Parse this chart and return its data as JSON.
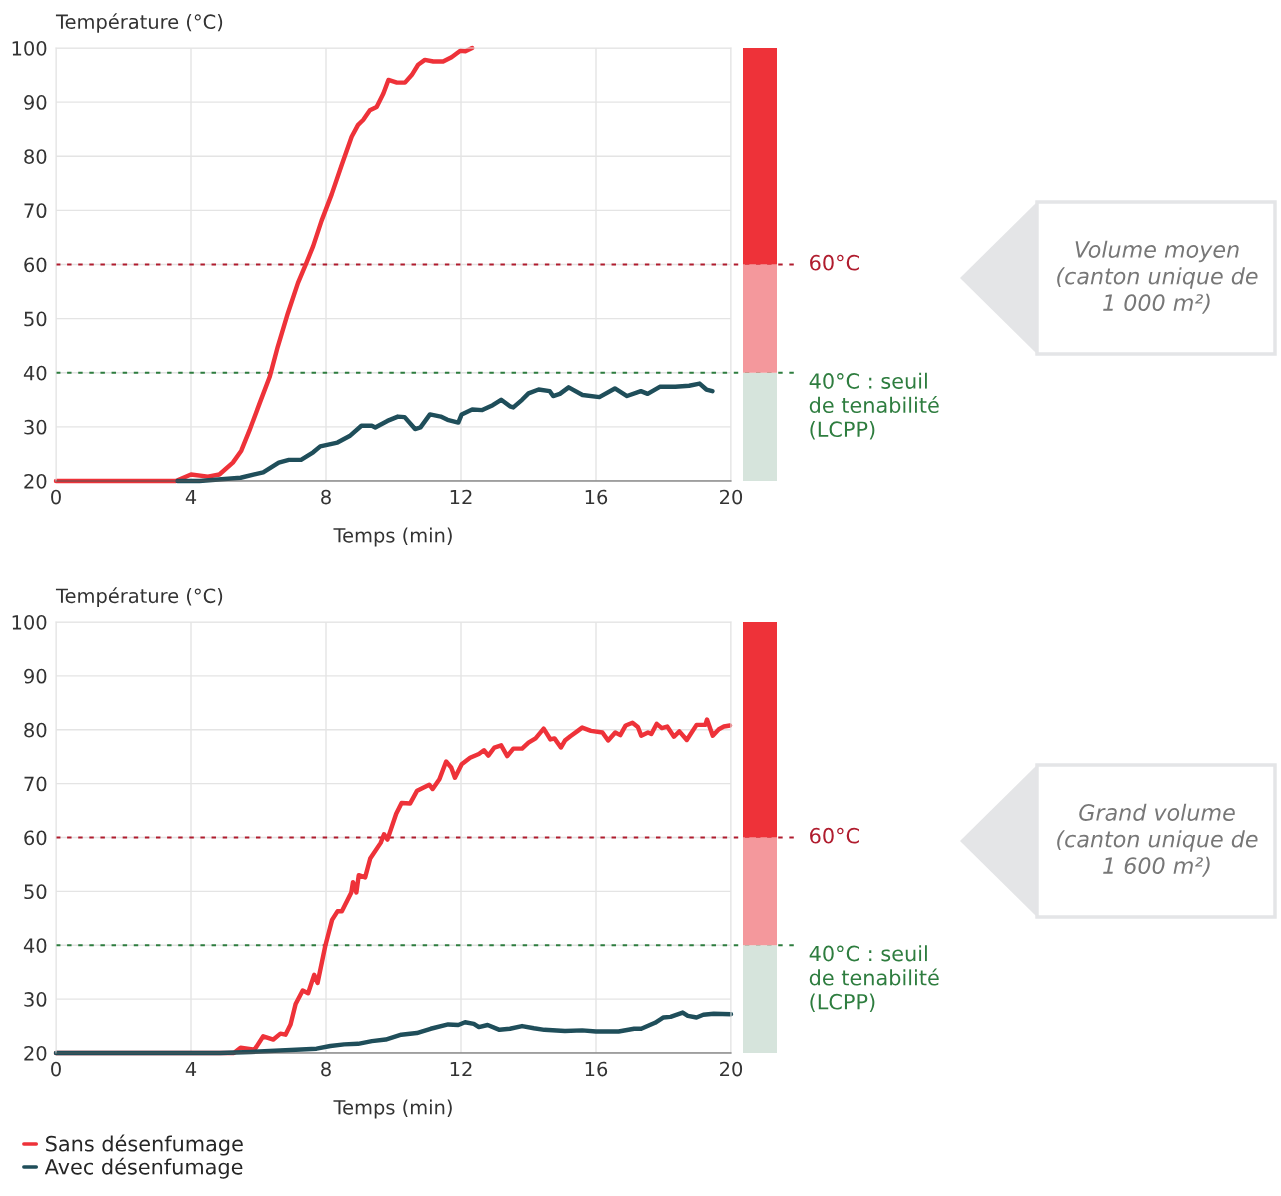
{
  "chart_data": [
    {
      "type": "line",
      "ylabel": "Température (°C)",
      "xlabel": "Temps (min)",
      "xlim": [
        0,
        20
      ],
      "xticks": [
        0,
        4,
        8,
        12,
        16,
        20
      ],
      "ylim": [
        20,
        100
      ],
      "yticks": [
        20,
        30,
        40,
        50,
        60,
        70,
        80,
        90,
        100
      ],
      "grid": true,
      "legend": false,
      "marker": "none",
      "line_style": "solid",
      "series": [
        {
          "color": "#ee3239",
          "x": [
            0,
            3.55,
            4.0,
            4.5,
            4.84,
            5.24,
            5.49,
            5.73,
            6.03,
            6.33,
            6.57,
            6.87,
            7.17,
            7.42,
            7.62,
            7.87,
            8.17,
            8.46,
            8.76,
            8.95,
            9.1,
            9.3,
            9.5,
            9.7,
            9.85,
            10.1,
            10.34,
            10.54,
            10.73,
            10.93,
            11.18,
            11.47,
            11.72,
            11.98,
            12.13,
            12.33
          ],
          "values": [
            20,
            20,
            21.2,
            20.8,
            21.2,
            23.4,
            25.6,
            29.3,
            34.3,
            39.2,
            44.8,
            51.0,
            56.6,
            60.3,
            63.4,
            68.1,
            73.0,
            78.3,
            83.6,
            85.8,
            86.7,
            88.5,
            89.1,
            91.6,
            94.1,
            93.6,
            93.6,
            95.0,
            96.9,
            97.8,
            97.5,
            97.5,
            98.3,
            99.5,
            99.4,
            100
          ]
        },
        {
          "color": "#1f4e5a",
          "x": [
            3.6,
            4.25,
            5.47,
            6.14,
            6.6,
            6.9,
            7.26,
            7.62,
            7.83,
            8.34,
            8.7,
            9.05,
            9.36,
            9.46,
            9.82,
            10.13,
            10.33,
            10.64,
            10.8,
            11.08,
            11.4,
            11.6,
            11.92,
            12.02,
            12.33,
            12.63,
            12.94,
            13.19,
            13.45,
            13.55,
            13.81,
            14.0,
            14.3,
            14.63,
            14.73,
            14.93,
            15.19,
            15.6,
            16.1,
            16.56,
            16.92,
            17.33,
            17.53,
            17.89,
            18.35,
            18.76,
            19.07,
            19.27,
            19.45
          ],
          "values": [
            20,
            20.0,
            20.6,
            21.6,
            23.4,
            23.9,
            23.9,
            25.3,
            26.4,
            27.1,
            28.3,
            30.2,
            30.2,
            29.9,
            31.1,
            31.9,
            31.8,
            29.6,
            29.9,
            32.3,
            31.9,
            31.3,
            30.8,
            32.3,
            33.2,
            33.1,
            34.0,
            35.0,
            33.8,
            33.6,
            35.0,
            36.2,
            36.9,
            36.6,
            35.7,
            36.1,
            37.3,
            35.9,
            35.5,
            37.1,
            35.7,
            36.6,
            36.1,
            37.4,
            37.4,
            37.6,
            38.0,
            36.9,
            36.6
          ]
        }
      ],
      "ref_lines": [
        {
          "axis": "y",
          "value": 60,
          "label": "60°C",
          "color": "#b01c2e",
          "line_style": "dotted"
        },
        {
          "axis": "y",
          "value": 40,
          "label": "40°C : seuil\nde tenabilité\n(LCPP)",
          "color": "#2e7d3f",
          "line_style": "dotted"
        }
      ],
      "annotations": [
        "Volume moyen\n(canton unique de\n1 000 m²)"
      ]
    },
    {
      "type": "line",
      "ylabel": "Température (°C)",
      "xlabel": "Temps (min)",
      "xlim": [
        0,
        20
      ],
      "xticks": [
        0,
        4,
        8,
        12,
        16,
        20
      ],
      "ylim": [
        20,
        100
      ],
      "yticks": [
        20,
        30,
        40,
        50,
        60,
        70,
        80,
        90,
        100
      ],
      "grid": true,
      "legend": "bottom left",
      "marker": "none",
      "line_style": "solid",
      "series": [
        {
          "name": "Sans désenfumage",
          "color": "#ee3239",
          "x": [
            0,
            5.27,
            5.47,
            5.88,
            6.14,
            6.44,
            6.65,
            6.8,
            6.95,
            7.1,
            7.31,
            7.47,
            7.65,
            7.75,
            7.98,
            8.18,
            8.34,
            8.47,
            8.75,
            8.8,
            8.9,
            8.97,
            9.16,
            9.31,
            9.62,
            9.72,
            9.82,
            10.08,
            10.24,
            10.49,
            10.7,
            11.06,
            11.16,
            11.36,
            11.56,
            11.71,
            11.82,
            12.02,
            12.27,
            12.53,
            12.68,
            12.81,
            12.99,
            13.19,
            13.37,
            13.55,
            13.81,
            14.0,
            14.21,
            14.45,
            14.65,
            14.77,
            14.96,
            15.08,
            15.24,
            15.44,
            15.59,
            15.85,
            16.19,
            16.36,
            16.57,
            16.72,
            16.88,
            17.08,
            17.24,
            17.34,
            17.54,
            17.64,
            17.8,
            17.95,
            18.11,
            18.31,
            18.47,
            18.69,
            18.98,
            19.24,
            19.29,
            19.46,
            19.64,
            19.79,
            19.97
          ],
          "values": [
            20,
            20,
            21.0,
            20.6,
            23.1,
            22.5,
            23.6,
            23.4,
            25.3,
            29.1,
            31.6,
            31.1,
            34.5,
            33.0,
            39.9,
            44.7,
            46.3,
            46.3,
            49.8,
            51.7,
            49.8,
            53.0,
            52.6,
            56.1,
            59.0,
            60.6,
            59.6,
            64.4,
            66.4,
            66.3,
            68.7,
            69.8,
            69.0,
            70.8,
            74.1,
            73.0,
            71.1,
            73.6,
            74.8,
            75.5,
            76.2,
            75.2,
            76.7,
            77.1,
            75.1,
            76.5,
            76.5,
            77.6,
            78.4,
            80.2,
            78.2,
            78.4,
            76.7,
            78.0,
            78.8,
            79.7,
            80.4,
            79.8,
            79.5,
            78.0,
            79.5,
            79.0,
            80.8,
            81.3,
            80.5,
            78.9,
            79.5,
            79.2,
            81.1,
            80.3,
            80.6,
            78.7,
            79.7,
            78.1,
            80.9,
            80.9,
            81.9,
            78.9,
            80.1,
            80.6,
            80.8
          ]
        },
        {
          "name": "Avec désenfumage",
          "color": "#1f4e5a",
          "x": [
            0,
            4.86,
            5.78,
            6.8,
            7.72,
            8.13,
            8.54,
            8.95,
            9.36,
            9.77,
            10.23,
            10.69,
            11.1,
            11.62,
            11.92,
            12.12,
            12.38,
            12.53,
            12.79,
            13.14,
            13.45,
            13.81,
            14.16,
            14.47,
            15.08,
            15.59,
            16.0,
            16.67,
            17.13,
            17.34,
            17.75,
            18.0,
            18.21,
            18.57,
            18.72,
            18.98,
            19.18,
            19.49,
            20.0
          ],
          "values": [
            20,
            20,
            20.2,
            20.5,
            20.8,
            21.3,
            21.6,
            21.7,
            22.2,
            22.5,
            23.4,
            23.7,
            24.5,
            25.3,
            25.2,
            25.7,
            25.4,
            24.8,
            25.2,
            24.3,
            24.5,
            25.0,
            24.6,
            24.3,
            24.1,
            24.2,
            24.0,
            24.0,
            24.5,
            24.5,
            25.6,
            26.6,
            26.7,
            27.5,
            26.9,
            26.6,
            27.1,
            27.3,
            27.2
          ]
        }
      ],
      "ref_lines": [
        {
          "axis": "y",
          "value": 60,
          "label": "60°C",
          "color": "#b01c2e",
          "line_style": "dotted"
        },
        {
          "axis": "y",
          "value": 40,
          "label": "40°C : seuil\nde tenabilité\n(LCPP)",
          "color": "#2e7d3f",
          "line_style": "dotted"
        }
      ],
      "annotations": [
        "Grand volume\n(canton unique de\n1 600 m²)"
      ]
    }
  ]
}
